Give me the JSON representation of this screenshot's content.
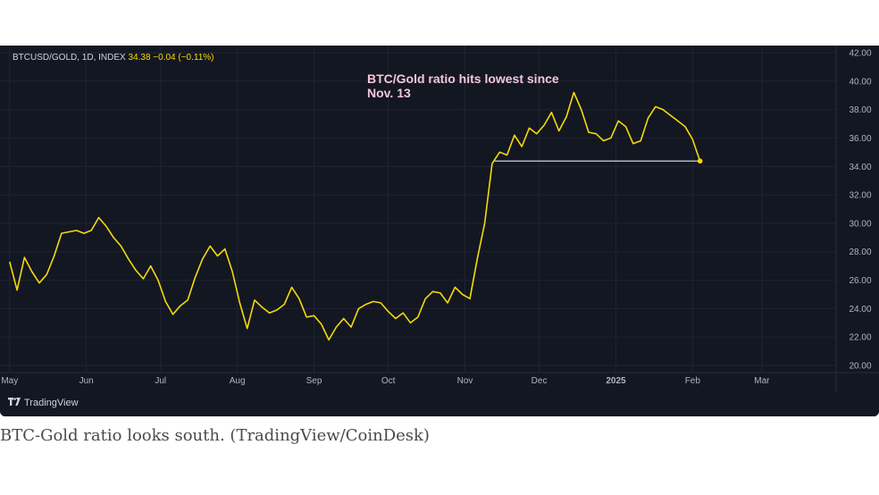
{
  "header": {
    "symbol": "BTCUSD/GOLD, 1D, INDEX",
    "last": "34.38",
    "change": "−0.04 (−0.11%)"
  },
  "annotation": "BTC/Gold ratio hits lowest since Nov. 13",
  "footer": {
    "brand": "TradingView"
  },
  "caption": "BTC-Gold ratio looks south. (TradingView/CoinDesk)",
  "colors": {
    "background": "#131722",
    "line": "#f5d90a",
    "support": "#d1d4dc",
    "annotation": "#f5c6d8",
    "grid": "#1f2433"
  },
  "chart_data": {
    "type": "line",
    "title": "",
    "xlabel": "",
    "ylabel": "",
    "ylim": [
      19.5,
      42.5
    ],
    "grid": true,
    "x_ticks": [
      {
        "date": "2024-05-01",
        "label": "May"
      },
      {
        "date": "2024-06-01",
        "label": "Jun"
      },
      {
        "date": "2024-07-01",
        "label": "Jul"
      },
      {
        "date": "2024-08-01",
        "label": "Aug"
      },
      {
        "date": "2024-09-01",
        "label": "Sep"
      },
      {
        "date": "2024-10-01",
        "label": "Oct"
      },
      {
        "date": "2024-11-01",
        "label": "Nov"
      },
      {
        "date": "2024-12-01",
        "label": "Dec"
      },
      {
        "date": "2025-01-01",
        "label": "2025"
      },
      {
        "date": "2025-02-01",
        "label": "Feb"
      },
      {
        "date": "2025-03-01",
        "label": "Mar"
      }
    ],
    "y_ticks": [
      "20.00",
      "22.00",
      "24.00",
      "26.00",
      "28.00",
      "30.00",
      "32.00",
      "34.00",
      "36.00",
      "38.00",
      "40.00",
      "42.00"
    ],
    "series": [
      {
        "values": [
          [
            "2024-05-01",
            27.3
          ],
          [
            "2024-05-04",
            25.3
          ],
          [
            "2024-05-07",
            27.6
          ],
          [
            "2024-05-10",
            26.6
          ],
          [
            "2024-05-13",
            25.8
          ],
          [
            "2024-05-16",
            26.4
          ],
          [
            "2024-05-19",
            27.7
          ],
          [
            "2024-05-22",
            29.3
          ],
          [
            "2024-05-25",
            29.4
          ],
          [
            "2024-05-28",
            29.5
          ],
          [
            "2024-05-31",
            29.3
          ],
          [
            "2024-06-03",
            29.5
          ],
          [
            "2024-06-06",
            30.4
          ],
          [
            "2024-06-09",
            29.8
          ],
          [
            "2024-06-12",
            29.0
          ],
          [
            "2024-06-15",
            28.4
          ],
          [
            "2024-06-18",
            27.5
          ],
          [
            "2024-06-21",
            26.7
          ],
          [
            "2024-06-24",
            26.1
          ],
          [
            "2024-06-27",
            27.0
          ],
          [
            "2024-06-30",
            26.0
          ],
          [
            "2024-07-03",
            24.5
          ],
          [
            "2024-07-06",
            23.6
          ],
          [
            "2024-07-09",
            24.2
          ],
          [
            "2024-07-12",
            24.6
          ],
          [
            "2024-07-15",
            26.2
          ],
          [
            "2024-07-18",
            27.5
          ],
          [
            "2024-07-21",
            28.4
          ],
          [
            "2024-07-24",
            27.7
          ],
          [
            "2024-07-27",
            28.2
          ],
          [
            "2024-07-30",
            26.6
          ],
          [
            "2024-08-02",
            24.4
          ],
          [
            "2024-08-05",
            22.6
          ],
          [
            "2024-08-08",
            24.6
          ],
          [
            "2024-08-11",
            24.1
          ],
          [
            "2024-08-14",
            23.7
          ],
          [
            "2024-08-17",
            23.9
          ],
          [
            "2024-08-20",
            24.3
          ],
          [
            "2024-08-23",
            25.5
          ],
          [
            "2024-08-26",
            24.7
          ],
          [
            "2024-08-29",
            23.4
          ],
          [
            "2024-09-01",
            23.5
          ],
          [
            "2024-09-04",
            22.9
          ],
          [
            "2024-09-07",
            21.8
          ],
          [
            "2024-09-10",
            22.7
          ],
          [
            "2024-09-13",
            23.3
          ],
          [
            "2024-09-16",
            22.7
          ],
          [
            "2024-09-19",
            24.0
          ],
          [
            "2024-09-22",
            24.3
          ],
          [
            "2024-09-25",
            24.5
          ],
          [
            "2024-09-28",
            24.4
          ],
          [
            "2024-10-01",
            23.8
          ],
          [
            "2024-10-04",
            23.3
          ],
          [
            "2024-10-07",
            23.7
          ],
          [
            "2024-10-10",
            23.0
          ],
          [
            "2024-10-13",
            23.4
          ],
          [
            "2024-10-16",
            24.7
          ],
          [
            "2024-10-19",
            25.2
          ],
          [
            "2024-10-22",
            25.1
          ],
          [
            "2024-10-25",
            24.4
          ],
          [
            "2024-10-28",
            25.5
          ],
          [
            "2024-10-31",
            25.0
          ],
          [
            "2024-11-03",
            24.7
          ],
          [
            "2024-11-06",
            27.5
          ],
          [
            "2024-11-09",
            30.0
          ],
          [
            "2024-11-12",
            34.2
          ],
          [
            "2024-11-15",
            35.0
          ],
          [
            "2024-11-18",
            34.8
          ],
          [
            "2024-11-21",
            36.2
          ],
          [
            "2024-11-24",
            35.4
          ],
          [
            "2024-11-27",
            36.7
          ],
          [
            "2024-11-30",
            36.3
          ],
          [
            "2024-12-03",
            36.9
          ],
          [
            "2024-12-06",
            37.8
          ],
          [
            "2024-12-09",
            36.5
          ],
          [
            "2024-12-12",
            37.5
          ],
          [
            "2024-12-15",
            39.2
          ],
          [
            "2024-12-18",
            38.0
          ],
          [
            "2024-12-21",
            36.4
          ],
          [
            "2024-12-24",
            36.3
          ],
          [
            "2024-12-27",
            35.8
          ],
          [
            "2024-12-30",
            36.0
          ],
          [
            "2025-01-02",
            37.2
          ],
          [
            "2025-01-05",
            36.8
          ],
          [
            "2025-01-08",
            35.6
          ],
          [
            "2025-01-11",
            35.8
          ],
          [
            "2025-01-14",
            37.4
          ],
          [
            "2025-01-17",
            38.2
          ],
          [
            "2025-01-20",
            38.0
          ],
          [
            "2025-01-23",
            37.6
          ],
          [
            "2025-01-26",
            37.2
          ],
          [
            "2025-01-29",
            36.8
          ],
          [
            "2025-02-01",
            35.9
          ],
          [
            "2025-02-04",
            34.38
          ]
        ]
      }
    ],
    "support_line": {
      "value": 34.38,
      "from": "2024-11-13",
      "to": "2025-02-04"
    },
    "last_value": 34.38
  }
}
